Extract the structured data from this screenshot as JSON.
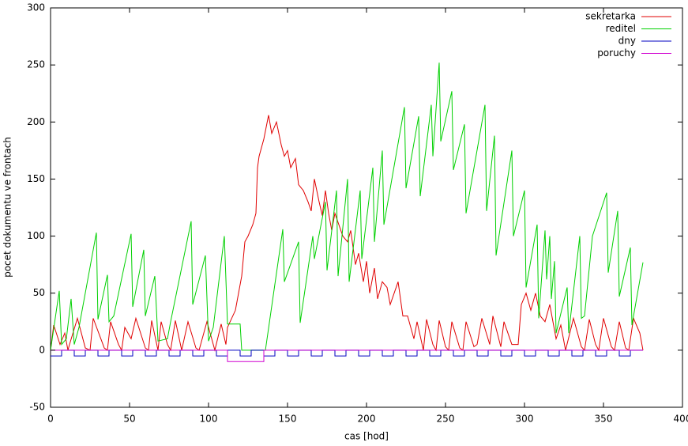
{
  "chart_data": {
    "type": "line",
    "xlabel": "cas [hod]",
    "ylabel": "pocet dokumentu ve frontach",
    "xlim": [
      0,
      400
    ],
    "ylim": [
      -50,
      300
    ],
    "xticks": [
      0,
      50,
      100,
      150,
      200,
      250,
      300,
      350,
      400
    ],
    "yticks": [
      -50,
      0,
      50,
      100,
      150,
      200,
      250,
      300
    ],
    "legend": "top-right",
    "series": [
      {
        "name": "sekretarka",
        "color": "#e00000",
        "x": [
          0,
          2,
          6,
          9,
          11,
          12,
          17,
          22,
          25,
          27,
          34,
          36,
          38,
          43,
          45,
          47,
          51,
          54,
          60,
          62,
          64,
          68,
          70,
          74,
          76,
          79,
          83,
          87,
          92,
          94,
          99,
          102,
          104,
          108,
          111,
          112,
          117,
          121,
          123,
          125,
          128,
          130,
          131,
          132,
          135,
          138,
          140,
          143,
          146,
          148,
          150,
          152,
          155,
          157,
          160,
          163,
          165,
          167,
          170,
          172,
          174,
          176,
          178,
          180,
          182,
          185,
          188,
          190,
          193,
          195,
          198,
          200,
          202,
          205,
          207,
          210,
          213,
          215,
          220,
          223,
          226,
          230,
          232,
          236,
          238,
          242,
          244,
          246,
          250,
          252,
          254,
          259,
          261,
          263,
          268,
          270,
          273,
          278,
          280,
          285,
          287,
          292,
          296,
          298,
          301,
          304,
          307,
          310,
          313,
          316,
          320,
          323,
          326,
          331,
          336,
          338,
          341,
          345,
          347,
          350,
          355,
          357,
          360,
          364,
          366,
          369,
          373,
          375
        ],
        "values": [
          0,
          22,
          5,
          15,
          0,
          5,
          28,
          2,
          0,
          28,
          2,
          0,
          25,
          5,
          0,
          20,
          10,
          28,
          2,
          0,
          26,
          0,
          25,
          5,
          0,
          26,
          0,
          25,
          2,
          0,
          25,
          10,
          0,
          23,
          5,
          20,
          35,
          65,
          95,
          100,
          110,
          120,
          160,
          170,
          185,
          206,
          190,
          200,
          180,
          170,
          175,
          160,
          168,
          145,
          140,
          130,
          122,
          150,
          130,
          118,
          140,
          120,
          105,
          120,
          112,
          100,
          95,
          105,
          75,
          85,
          60,
          78,
          50,
          72,
          45,
          60,
          55,
          40,
          60,
          30,
          30,
          10,
          25,
          0,
          27,
          5,
          0,
          26,
          3,
          0,
          25,
          2,
          0,
          25,
          3,
          5,
          28,
          5,
          30,
          3,
          25,
          5,
          5,
          40,
          50,
          35,
          50,
          30,
          25,
          40,
          10,
          22,
          0,
          28,
          3,
          0,
          27,
          5,
          0,
          28,
          3,
          0,
          25,
          2,
          0,
          28,
          15,
          0
        ]
      },
      {
        "name": "reditel",
        "color": "#00d000",
        "x": [
          0,
          5.5,
          7,
          10,
          13,
          15,
          18,
          29,
          30,
          36,
          37,
          40,
          51,
          52,
          59,
          60,
          66,
          68,
          74,
          76,
          89,
          90,
          98,
          100,
          103,
          110,
          111,
          112,
          120,
          121,
          136,
          147,
          148,
          157,
          158,
          166,
          167,
          174,
          175,
          181,
          182,
          188,
          189,
          196,
          197,
          204,
          205,
          210,
          211,
          224,
          225,
          233,
          234,
          241,
          242,
          246,
          247,
          254,
          255,
          262,
          263,
          275,
          276,
          281,
          282,
          292,
          293,
          300,
          301,
          308,
          309,
          313,
          314,
          316,
          317,
          319,
          320,
          327,
          328,
          335,
          336,
          338,
          343,
          352,
          353,
          359,
          360,
          367,
          368,
          375
        ],
        "values": [
          0,
          52,
          5,
          10,
          45,
          5,
          20,
          103,
          27,
          66,
          25,
          30,
          102,
          38,
          88,
          30,
          65,
          8,
          10,
          25,
          113,
          40,
          83,
          8,
          20,
          100,
          62,
          23,
          23,
          0,
          0,
          106,
          60,
          95,
          24,
          100,
          80,
          130,
          70,
          140,
          65,
          150,
          60,
          140,
          80,
          160,
          95,
          175,
          110,
          213,
          142,
          205,
          135,
          215,
          170,
          252,
          183,
          227,
          158,
          198,
          120,
          215,
          122,
          188,
          83,
          175,
          100,
          140,
          55,
          110,
          28,
          105,
          62,
          100,
          45,
          78,
          15,
          55,
          15,
          100,
          28,
          30,
          100,
          138,
          68,
          122,
          47,
          90,
          22,
          77
        ]
      },
      {
        "name": "dny",
        "color": "#0000c0",
        "x": [
          0,
          7,
          7,
          15,
          15,
          22,
          22,
          30,
          30,
          37,
          37,
          45,
          45,
          52,
          52,
          60,
          60,
          67,
          67,
          75,
          75,
          82,
          82,
          90,
          90,
          97,
          97,
          105,
          105,
          112,
          112,
          120,
          120,
          127,
          127,
          135,
          135,
          142,
          142,
          150,
          150,
          157,
          157,
          165,
          165,
          172,
          172,
          180,
          180,
          187,
          187,
          195,
          195,
          202,
          202,
          210,
          210,
          217,
          217,
          225,
          225,
          232,
          232,
          240,
          240,
          247,
          247,
          255,
          255,
          262,
          262,
          270,
          270,
          277,
          277,
          285,
          285,
          292,
          292,
          300,
          300,
          307,
          307,
          315,
          315,
          322,
          322,
          330,
          330,
          337,
          337,
          345,
          345,
          352,
          352,
          360,
          360,
          367,
          367,
          375
        ],
        "values": [
          -5,
          -5,
          0,
          0,
          -5,
          -5,
          0,
          0,
          -5,
          -5,
          0,
          0,
          -5,
          -5,
          0,
          0,
          -5,
          -5,
          0,
          0,
          -5,
          -5,
          0,
          0,
          -5,
          -5,
          0,
          0,
          -5,
          -5,
          0,
          0,
          -5,
          -5,
          0,
          0,
          -5,
          -5,
          0,
          0,
          -5,
          -5,
          0,
          0,
          -5,
          -5,
          0,
          0,
          -5,
          -5,
          0,
          0,
          -5,
          -5,
          0,
          0,
          -5,
          -5,
          0,
          0,
          -5,
          -5,
          0,
          0,
          -5,
          -5,
          0,
          0,
          -5,
          -5,
          0,
          0,
          -5,
          -5,
          0,
          0,
          -5,
          -5,
          0,
          0,
          -5,
          -5,
          0,
          0,
          -5,
          -5,
          0,
          0,
          -5,
          -5,
          0,
          0,
          -5,
          -5,
          0,
          0,
          -5,
          -5,
          0,
          0
        ]
      },
      {
        "name": "poruchy",
        "color": "#d000d0",
        "x": [
          0,
          112,
          112,
          135,
          135,
          375
        ],
        "values": [
          0,
          0,
          -10,
          -10,
          0,
          0
        ]
      }
    ]
  }
}
